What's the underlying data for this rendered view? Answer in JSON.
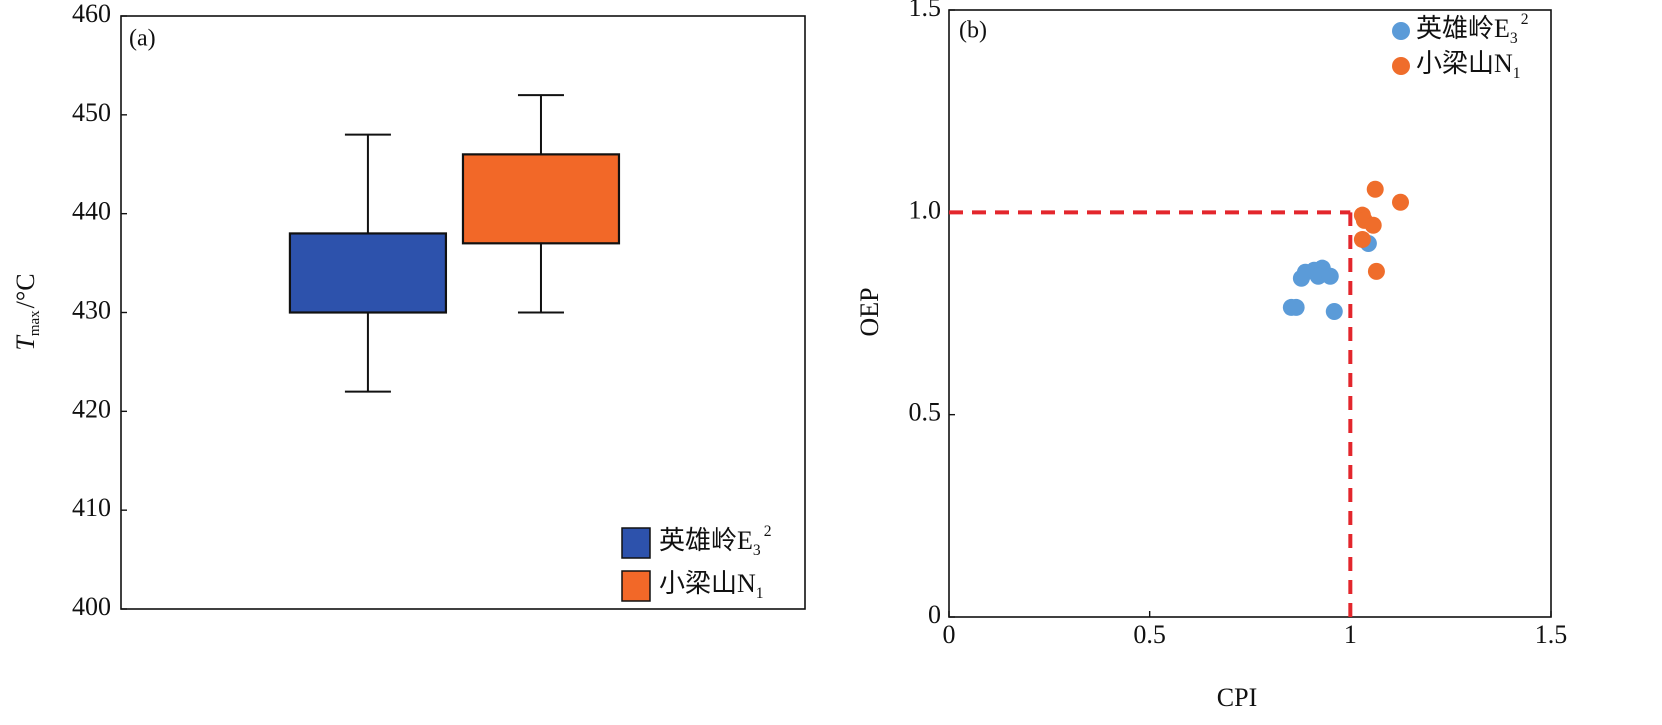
{
  "chart_data": [
    {
      "type": "box",
      "panel_label": "(a)",
      "y_label": {
        "main": "T",
        "sub": "max",
        "unit": "/°C"
      },
      "ylim": [
        400,
        460
      ],
      "yticks": [
        400,
        410,
        420,
        430,
        440,
        450,
        460
      ],
      "legend_position": "lower right",
      "series": [
        {
          "name": "英雄岭E",
          "name_sub": "3",
          "name_sup": "2",
          "color": "#2d52ac",
          "whisker_low": 422,
          "q1": 430,
          "q3": 438,
          "whisker_high": 448
        },
        {
          "name": "小梁山N",
          "name_sub": "1",
          "color": "#f26828",
          "whisker_low": 430,
          "q1": 437,
          "q3": 446,
          "whisker_high": 452
        }
      ]
    },
    {
      "type": "scatter",
      "panel_label": "(b)",
      "x_label": "CPI",
      "y_label": "OEP",
      "xlim": [
        0,
        1.5
      ],
      "ylim": [
        0,
        1.5
      ],
      "xticks": [
        0,
        0.5,
        1,
        1.5
      ],
      "yticks": [
        0,
        0.5,
        {
          "value": 1,
          "label": "1.0"
        },
        1.5
      ],
      "reference_lines": {
        "x": 1,
        "y": 1,
        "color": "#e3262c"
      },
      "legend_position": "upper right",
      "series": [
        {
          "name": "英雄岭E",
          "name_sub": "3",
          "name_sup": "2",
          "color": "#5b9bd8",
          "x": [
            0.878,
            0.888,
            0.91,
            0.93,
            0.93,
            0.92,
            0.95,
            0.853,
            0.865,
            0.96,
            1.045
          ],
          "values": [
            0.837,
            0.852,
            0.857,
            0.862,
            0.847,
            0.842,
            0.842,
            0.765,
            0.765,
            0.755,
            0.923
          ]
        },
        {
          "name": "小梁山N",
          "name_sub": "1",
          "color": "#ef6d2b",
          "x": [
            1.062,
            1.03,
            1.035,
            1.057,
            1.03,
            1.065,
            1.125
          ],
          "values": [
            1.057,
            0.993,
            0.98,
            0.968,
            0.933,
            0.854,
            1.025
          ]
        }
      ]
    }
  ]
}
